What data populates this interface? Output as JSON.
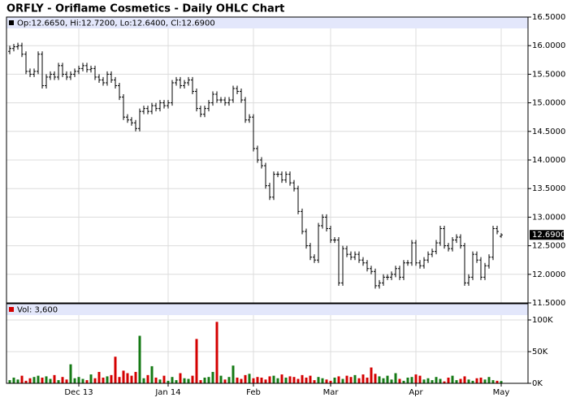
{
  "chart_data": [
    {
      "type": "ohlc",
      "title": "ORFLY - Oriflame Cosmetics - Daily OHLC Chart",
      "info": "Op:12.6650, Hi:12.7200, Lo:12.6400, Cl:12.6900",
      "last_price": {
        "value": 12.69,
        "label": "12.6900"
      },
      "color": "#000000",
      "header_color": "#e3e7fb",
      "grid": true,
      "open": [
        15.9,
        15.95,
        15.98,
        16.0,
        15.85,
        15.55,
        15.5,
        15.55,
        15.85,
        15.3,
        15.45,
        15.5,
        15.45,
        15.65,
        15.5,
        15.45,
        15.5,
        15.55,
        15.6,
        15.65,
        15.58,
        15.6,
        15.45,
        15.4,
        15.35,
        15.5,
        15.4,
        15.3,
        15.1,
        14.75,
        14.7,
        14.65,
        14.55,
        14.85,
        14.9,
        14.85,
        14.95,
        14.9,
        15.0,
        14.95,
        15.0,
        15.35,
        15.4,
        15.3,
        15.35,
        15.4,
        15.2,
        14.9,
        14.8,
        14.9,
        15.0,
        15.15,
        15.05,
        15.05,
        15.0,
        15.05,
        15.25,
        15.2,
        15.05,
        14.7,
        14.75,
        14.2,
        14.0,
        13.9,
        13.55,
        13.35,
        13.75,
        13.75,
        13.65,
        13.75,
        13.6,
        13.5,
        13.1,
        12.75,
        12.5,
        12.3,
        12.25,
        12.85,
        13.0,
        12.8,
        12.6,
        12.6,
        11.85,
        12.45,
        12.35,
        12.3,
        12.35,
        12.25,
        12.2,
        12.1,
        12.05,
        11.8,
        11.85,
        11.95,
        11.95,
        12.0,
        12.1,
        11.95,
        12.2,
        12.2,
        12.55,
        12.2,
        12.15,
        12.25,
        12.35,
        12.4,
        12.55,
        12.8,
        12.5,
        12.45,
        12.6,
        12.65,
        12.5,
        11.85,
        11.95,
        12.35,
        12.25,
        11.95,
        12.15,
        12.3,
        12.8,
        12.665
      ],
      "high": [
        16.0,
        16.03,
        16.05,
        16.05,
        15.9,
        15.6,
        15.6,
        15.9,
        15.9,
        15.5,
        15.55,
        15.55,
        15.7,
        15.7,
        15.55,
        15.55,
        15.6,
        15.65,
        15.7,
        15.7,
        15.65,
        15.65,
        15.5,
        15.45,
        15.55,
        15.55,
        15.45,
        15.35,
        15.15,
        14.8,
        14.75,
        14.7,
        14.9,
        14.95,
        14.95,
        15.0,
        15.0,
        15.05,
        15.05,
        15.05,
        15.4,
        15.45,
        15.45,
        15.4,
        15.45,
        15.45,
        15.25,
        14.95,
        14.95,
        15.05,
        15.2,
        15.2,
        15.1,
        15.1,
        15.1,
        15.3,
        15.3,
        15.25,
        15.1,
        14.8,
        14.8,
        14.25,
        14.05,
        13.95,
        13.6,
        13.8,
        13.8,
        13.8,
        13.8,
        13.8,
        13.65,
        13.55,
        13.15,
        12.8,
        12.55,
        12.35,
        12.9,
        13.05,
        13.05,
        12.85,
        12.65,
        12.65,
        12.5,
        12.5,
        12.4,
        12.4,
        12.4,
        12.3,
        12.25,
        12.15,
        12.1,
        11.9,
        12.0,
        12.0,
        12.05,
        12.15,
        12.15,
        12.25,
        12.25,
        12.6,
        12.6,
        12.25,
        12.3,
        12.4,
        12.45,
        12.6,
        12.85,
        12.85,
        12.55,
        12.65,
        12.7,
        12.7,
        12.55,
        12.0,
        12.4,
        12.4,
        12.3,
        12.2,
        12.35,
        12.85,
        12.85,
        12.72
      ],
      "low": [
        15.85,
        15.9,
        15.93,
        15.8,
        15.5,
        15.45,
        15.45,
        15.5,
        15.25,
        15.25,
        15.4,
        15.4,
        15.4,
        15.45,
        15.4,
        15.4,
        15.45,
        15.5,
        15.55,
        15.53,
        15.53,
        15.4,
        15.35,
        15.3,
        15.3,
        15.35,
        15.25,
        15.05,
        14.7,
        14.65,
        14.6,
        14.5,
        14.5,
        14.8,
        14.8,
        14.8,
        14.85,
        14.85,
        14.9,
        14.9,
        14.95,
        15.3,
        15.25,
        15.25,
        15.3,
        15.15,
        14.85,
        14.75,
        14.75,
        14.85,
        14.95,
        15.0,
        15.0,
        14.95,
        14.95,
        15.0,
        15.15,
        15.0,
        14.65,
        14.65,
        14.15,
        13.95,
        13.85,
        13.5,
        13.3,
        13.3,
        13.7,
        13.6,
        13.6,
        13.55,
        13.45,
        13.05,
        12.7,
        12.45,
        12.25,
        12.2,
        12.2,
        12.8,
        12.75,
        12.55,
        12.55,
        11.8,
        11.8,
        12.3,
        12.25,
        12.25,
        12.2,
        12.15,
        12.05,
        12.0,
        11.75,
        11.75,
        11.8,
        11.9,
        11.9,
        11.95,
        11.9,
        11.9,
        12.15,
        12.15,
        12.15,
        12.1,
        12.1,
        12.2,
        12.3,
        12.35,
        12.5,
        12.45,
        12.4,
        12.4,
        12.55,
        12.45,
        11.8,
        11.8,
        11.9,
        12.2,
        11.9,
        11.9,
        12.1,
        12.25,
        12.7,
        12.64
      ],
      "close": [
        15.95,
        15.98,
        16.0,
        15.85,
        15.55,
        15.5,
        15.55,
        15.85,
        15.3,
        15.45,
        15.5,
        15.45,
        15.65,
        15.5,
        15.45,
        15.5,
        15.55,
        15.6,
        15.65,
        15.58,
        15.6,
        15.45,
        15.4,
        15.35,
        15.5,
        15.4,
        15.3,
        15.1,
        14.75,
        14.7,
        14.65,
        14.55,
        14.85,
        14.9,
        14.85,
        14.95,
        14.9,
        15.0,
        14.95,
        15.0,
        15.35,
        15.4,
        15.3,
        15.35,
        15.4,
        15.2,
        14.9,
        14.8,
        14.9,
        15.0,
        15.15,
        15.05,
        15.05,
        15.0,
        15.05,
        15.25,
        15.2,
        15.05,
        14.7,
        14.75,
        14.2,
        14.0,
        13.9,
        13.55,
        13.35,
        13.75,
        13.75,
        13.65,
        13.75,
        13.6,
        13.5,
        13.1,
        12.75,
        12.5,
        12.3,
        12.25,
        12.85,
        13.0,
        12.8,
        12.6,
        12.6,
        11.85,
        12.45,
        12.35,
        12.3,
        12.35,
        12.25,
        12.2,
        12.1,
        12.05,
        11.8,
        11.85,
        11.95,
        11.95,
        12.0,
        12.1,
        11.95,
        12.2,
        12.2,
        12.55,
        12.2,
        12.15,
        12.25,
        12.35,
        12.4,
        12.55,
        12.8,
        12.5,
        12.45,
        12.6,
        12.65,
        12.5,
        11.85,
        11.95,
        12.35,
        12.25,
        11.95,
        12.15,
        12.3,
        12.8,
        12.75,
        12.69
      ],
      "xlim": [
        -0.8,
        127.6
      ],
      "xticks": [
        {
          "value": 17,
          "label": "Dec 13"
        },
        {
          "value": 39,
          "label": "Jan 14"
        },
        {
          "value": 60,
          "label": "Feb"
        },
        {
          "value": 79,
          "label": "Mar"
        },
        {
          "value": 100,
          "label": "Apr"
        },
        {
          "value": 121,
          "label": "May"
        }
      ],
      "ylim": [
        11.5,
        16.5
      ],
      "yticks": [
        {
          "value": 11.5,
          "label": "11.5000"
        },
        {
          "value": 12,
          "label": "12.0000"
        },
        {
          "value": 12.5,
          "label": "12.5000"
        },
        {
          "value": 13,
          "label": "13.0000"
        },
        {
          "value": 13.5,
          "label": "13.5000"
        },
        {
          "value": 14,
          "label": "14.0000"
        },
        {
          "value": 14.5,
          "label": "14.5000"
        },
        {
          "value": 15,
          "label": "15.0000"
        },
        {
          "value": 15.5,
          "label": "15.5000"
        },
        {
          "value": 16,
          "label": "16.0000"
        },
        {
          "value": 16.5,
          "label": "16.5000"
        }
      ]
    },
    {
      "type": "bar",
      "legend": "Vol: 3,600",
      "legend_color": "#d40000",
      "up_color": "#157a15",
      "down_color": "#d40000",
      "values": [
        5000,
        9000,
        6000,
        12000,
        4000,
        8000,
        10000,
        12000,
        9000,
        11000,
        7000,
        13000,
        5000,
        10000,
        6000,
        30000,
        8000,
        10000,
        7000,
        5000,
        14000,
        8000,
        18000,
        9000,
        11000,
        13000,
        42000,
        10000,
        20000,
        16000,
        12000,
        18000,
        75000,
        8000,
        13000,
        27000,
        9000,
        6000,
        12000,
        4000,
        10000,
        5000,
        16000,
        8000,
        7000,
        12000,
        70000,
        5000,
        9000,
        10000,
        18000,
        97000,
        12000,
        6000,
        10000,
        28000,
        9000,
        7000,
        13000,
        15000,
        8000,
        10000,
        9000,
        6000,
        11000,
        12000,
        8000,
        14000,
        9000,
        11000,
        10000,
        7000,
        13000,
        9000,
        12000,
        5000,
        10000,
        8000,
        6000,
        4000,
        9000,
        11000,
        7000,
        12000,
        10000,
        13000,
        8000,
        14000,
        9000,
        25000,
        15000,
        11000,
        8000,
        12000,
        6000,
        16000,
        7000,
        4000,
        9000,
        10000,
        14000,
        12000,
        6000,
        8000,
        5000,
        10000,
        7000,
        3000,
        9000,
        12000,
        5000,
        7000,
        11000,
        6000,
        4000,
        8000,
        9000,
        6000,
        10000,
        5000,
        4000,
        3600
      ],
      "ylim": [
        0,
        125600
      ],
      "yticks": [
        {
          "value": 0,
          "label": "0K"
        },
        {
          "value": 50000,
          "label": "50K"
        },
        {
          "value": 100000,
          "label": "100K"
        }
      ]
    }
  ]
}
